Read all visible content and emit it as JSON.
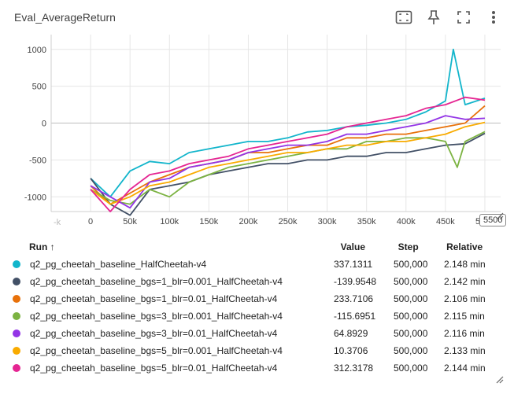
{
  "card": {
    "title": "Eval_AverageReturn"
  },
  "toolbar": {
    "icons": [
      "fit-domain-icon",
      "pin-icon",
      "fullscreen-icon",
      "more-vert-icon"
    ]
  },
  "chart_data": {
    "type": "line",
    "title": "Eval_AverageReturn",
    "xlabel": "",
    "ylabel": "",
    "xlim": [
      -50000,
      520000
    ],
    "ylim": [
      -1200,
      1200
    ],
    "x_ticks": [
      "0",
      "50k",
      "100k",
      "150k",
      "200k",
      "250k",
      "300k",
      "350k",
      "400k",
      "450k",
      "500k"
    ],
    "y_ticks": [
      "1000",
      "500",
      "0",
      "-500",
      "-1000"
    ],
    "left_edge_tick": "-k",
    "right_edge_tick": "5500",
    "grid": true,
    "legend": "table-below",
    "series": [
      {
        "name": "q2_pg_cheetah_baseline_HalfCheetah-v4",
        "color": "#12b5cb",
        "x": [
          0,
          25000,
          50000,
          75000,
          100000,
          125000,
          150000,
          175000,
          200000,
          225000,
          250000,
          275000,
          300000,
          325000,
          350000,
          375000,
          400000,
          425000,
          450000,
          460000,
          475000,
          500000
        ],
        "y": [
          -750,
          -1000,
          -650,
          -520,
          -550,
          -400,
          -350,
          -300,
          -250,
          -250,
          -200,
          -120,
          -100,
          -50,
          -30,
          0,
          50,
          150,
          300,
          1000,
          250,
          337
        ]
      },
      {
        "name": "q2_pg_cheetah_baseline_bgs=1_blr=0.001_HalfCheetah-v4",
        "color": "#425066",
        "x": [
          0,
          25000,
          50000,
          75000,
          100000,
          125000,
          150000,
          175000,
          200000,
          225000,
          250000,
          275000,
          300000,
          325000,
          350000,
          375000,
          400000,
          425000,
          450000,
          475000,
          500000
        ],
        "y": [
          -750,
          -1100,
          -1250,
          -900,
          -850,
          -800,
          -700,
          -650,
          -600,
          -550,
          -550,
          -500,
          -500,
          -450,
          -450,
          -400,
          -400,
          -350,
          -300,
          -280,
          -140
        ]
      },
      {
        "name": "q2_pg_cheetah_baseline_bgs=1_blr=0.01_HalfCheetah-v4",
        "color": "#e8710a",
        "x": [
          0,
          25000,
          50000,
          75000,
          100000,
          125000,
          150000,
          175000,
          200000,
          225000,
          250000,
          275000,
          300000,
          325000,
          350000,
          375000,
          400000,
          425000,
          450000,
          475000,
          500000
        ],
        "y": [
          -850,
          -1100,
          -950,
          -800,
          -700,
          -600,
          -550,
          -500,
          -400,
          -400,
          -350,
          -300,
          -300,
          -200,
          -200,
          -150,
          -150,
          -100,
          -50,
          0,
          234
        ]
      },
      {
        "name": "q2_pg_cheetah_baseline_bgs=3_blr=0.001_HalfCheetah-v4",
        "color": "#7cb342",
        "x": [
          0,
          25000,
          50000,
          75000,
          100000,
          125000,
          150000,
          175000,
          200000,
          225000,
          250000,
          275000,
          300000,
          325000,
          350000,
          375000,
          400000,
          425000,
          450000,
          465000,
          475000,
          500000
        ],
        "y": [
          -900,
          -1050,
          -1100,
          -900,
          -1000,
          -800,
          -700,
          -600,
          -550,
          -500,
          -450,
          -400,
          -350,
          -350,
          -250,
          -250,
          -200,
          -200,
          -250,
          -600,
          -250,
          -116
        ]
      },
      {
        "name": "q2_pg_cheetah_baseline_bgs=3_blr=0.01_HalfCheetah-v4",
        "color": "#9334e6",
        "x": [
          0,
          25000,
          50000,
          75000,
          100000,
          125000,
          150000,
          175000,
          200000,
          225000,
          250000,
          275000,
          300000,
          325000,
          350000,
          375000,
          400000,
          425000,
          450000,
          475000,
          500000
        ],
        "y": [
          -850,
          -1000,
          -1150,
          -800,
          -750,
          -600,
          -550,
          -500,
          -400,
          -350,
          -300,
          -300,
          -250,
          -150,
          -150,
          -100,
          -50,
          0,
          100,
          50,
          65
        ]
      },
      {
        "name": "q2_pg_cheetah_baseline_bgs=5_blr=0.001_HalfCheetah-v4",
        "color": "#f9ab00",
        "x": [
          0,
          25000,
          50000,
          75000,
          100000,
          125000,
          150000,
          175000,
          200000,
          225000,
          250000,
          275000,
          300000,
          325000,
          350000,
          375000,
          400000,
          425000,
          450000,
          475000,
          500000
        ],
        "y": [
          -900,
          -1100,
          -1000,
          -850,
          -800,
          -700,
          -600,
          -550,
          -500,
          -450,
          -400,
          -400,
          -350,
          -300,
          -300,
          -250,
          -250,
          -200,
          -150,
          -50,
          10
        ]
      },
      {
        "name": "q2_pg_cheetah_baseline_bgs=5_blr=0.01_HalfCheetah-v4",
        "color": "#e52592",
        "x": [
          0,
          25000,
          50000,
          75000,
          100000,
          125000,
          150000,
          175000,
          200000,
          225000,
          250000,
          275000,
          300000,
          325000,
          350000,
          375000,
          400000,
          425000,
          450000,
          475000,
          500000
        ],
        "y": [
          -900,
          -1200,
          -900,
          -700,
          -650,
          -550,
          -500,
          -450,
          -350,
          -300,
          -250,
          -200,
          -150,
          -50,
          0,
          50,
          100,
          200,
          250,
          350,
          312
        ]
      }
    ]
  },
  "table": {
    "headers": {
      "run": "Run ↑",
      "value": "Value",
      "step": "Step",
      "relative": "Relative"
    },
    "rows": [
      {
        "color": "#12b5cb",
        "run": "q2_pg_cheetah_baseline_HalfCheetah-v4",
        "value": "337.1311",
        "step": "500,000",
        "relative": "2.148 min"
      },
      {
        "color": "#425066",
        "run": "q2_pg_cheetah_baseline_bgs=1_blr=0.001_HalfCheetah-v4",
        "value": "-139.9548",
        "step": "500,000",
        "relative": "2.142 min"
      },
      {
        "color": "#e8710a",
        "run": "q2_pg_cheetah_baseline_bgs=1_blr=0.01_HalfCheetah-v4",
        "value": "233.7106",
        "step": "500,000",
        "relative": "2.106 min"
      },
      {
        "color": "#7cb342",
        "run": "q2_pg_cheetah_baseline_bgs=3_blr=0.001_HalfCheetah-v4",
        "value": "-115.6951",
        "step": "500,000",
        "relative": "2.115 min"
      },
      {
        "color": "#9334e6",
        "run": "q2_pg_cheetah_baseline_bgs=3_blr=0.01_HalfCheetah-v4",
        "value": "64.8929",
        "step": "500,000",
        "relative": "2.116 min"
      },
      {
        "color": "#f9ab00",
        "run": "q2_pg_cheetah_baseline_bgs=5_blr=0.001_HalfCheetah-v4",
        "value": "10.3706",
        "step": "500,000",
        "relative": "2.133 min"
      },
      {
        "color": "#e52592",
        "run": "q2_pg_cheetah_baseline_bgs=5_blr=0.01_HalfCheetah-v4",
        "value": "312.3178",
        "step": "500,000",
        "relative": "2.144 min"
      }
    ]
  }
}
